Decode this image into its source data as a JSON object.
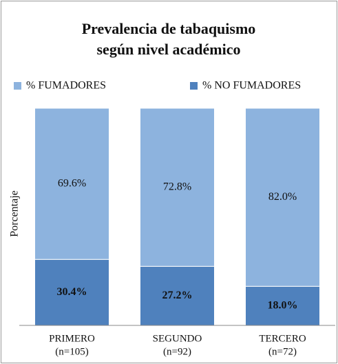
{
  "chart_data": {
    "type": "stacked_bar",
    "title": [
      "Prevalencia de tabaquismo",
      "según nivel académico"
    ],
    "y_label": "Porcentaje",
    "categories": [
      [
        "PRIMERO",
        "(n=105)"
      ],
      [
        "SEGUNDO",
        "(n=92)"
      ],
      [
        "TERCERO",
        "(n=72)"
      ]
    ],
    "series": [
      {
        "name": "% NO FUMADORES",
        "color": "#4f81bd",
        "values": [
          30.4,
          27.2,
          18.0
        ],
        "value_labels": [
          "30.4%",
          "27.2%",
          "18.0%"
        ]
      },
      {
        "name": "% FUMADORES",
        "color": "#8db3de",
        "values": [
          69.6,
          72.8,
          82.0
        ],
        "value_labels": [
          "69.6%",
          "72.8%",
          "82.0%"
        ]
      }
    ],
    "ylim": [
      0,
      100
    ],
    "legend": "top"
  }
}
